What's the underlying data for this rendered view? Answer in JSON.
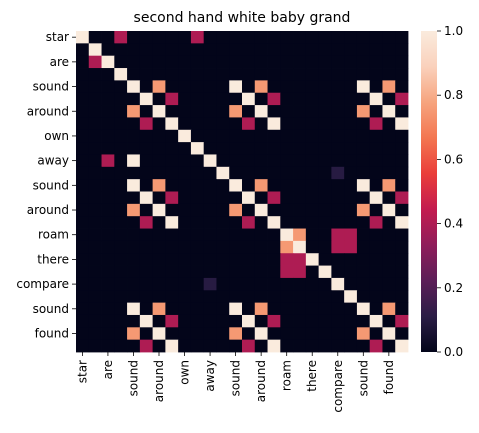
{
  "chart_data": {
    "type": "heatmap",
    "title": "second hand white baby grand",
    "xlabel": "",
    "ylabel": "",
    "row_labels": [
      "star",
      "",
      "are",
      "",
      "sound",
      "",
      "around",
      "",
      "own",
      "",
      "away",
      "",
      "sound",
      "",
      "around",
      "",
      "roam",
      "",
      "there",
      "",
      "compare",
      "",
      "sound",
      "",
      "found",
      ""
    ],
    "col_labels": [
      "star",
      "",
      "are",
      "",
      "sound",
      "",
      "around",
      "",
      "own",
      "",
      "away",
      "",
      "sound",
      "",
      "around",
      "",
      "roam",
      "",
      "there",
      "",
      "compare",
      "",
      "sound",
      "",
      "found",
      ""
    ],
    "colorbar": {
      "range": [
        0.0,
        1.0
      ],
      "ticks": [
        "0.0",
        "0.2",
        "0.4",
        "0.6",
        "0.8",
        "1.0"
      ]
    },
    "colormap": [
      "#03051a",
      "#2b1d46",
      "#5c1e58",
      "#8f1d5a",
      "#c31b4f",
      "#ea3e3a",
      "#f37651",
      "#f6a47e",
      "#fad1bc",
      "#faebdd"
    ],
    "values": [
      [
        1,
        0,
        0,
        0,
        0,
        0,
        0,
        0,
        0,
        0,
        0,
        0,
        0,
        0,
        0,
        0,
        0,
        0,
        0,
        0,
        0,
        0,
        0,
        0,
        0,
        0
      ],
      [
        0,
        1,
        0,
        0,
        0,
        0,
        0,
        0,
        0,
        0,
        0,
        0,
        0,
        0,
        0,
        0,
        0,
        0,
        0,
        0,
        0,
        0,
        0,
        0,
        0,
        0
      ],
      [
        0,
        0,
        1,
        0,
        0,
        0,
        0,
        0,
        0,
        0,
        0,
        0,
        0,
        0,
        0,
        0,
        0,
        0,
        0,
        0,
        0,
        0,
        0,
        0,
        0,
        0
      ],
      [
        0,
        0,
        0,
        1,
        0,
        0,
        0,
        0,
        0,
        0,
        0,
        0,
        0,
        0,
        0,
        0,
        0,
        0,
        0,
        0,
        0,
        0,
        0,
        0,
        0,
        0
      ],
      [
        0,
        0,
        0,
        0,
        1,
        0,
        0,
        0,
        0,
        0,
        0,
        0,
        0,
        0,
        0,
        0,
        0,
        0,
        0,
        0,
        0,
        0,
        0,
        0,
        0,
        0
      ],
      [
        0,
        0,
        0,
        0,
        0,
        1,
        0,
        0,
        0,
        0,
        0,
        0,
        0,
        0,
        0,
        0,
        0,
        0,
        0,
        0,
        0,
        0,
        0,
        0,
        0,
        0
      ],
      [
        0,
        0,
        0,
        0,
        0,
        0,
        1,
        0,
        0,
        0,
        0,
        0,
        0,
        0,
        0,
        0,
        0,
        0,
        0,
        0,
        0,
        0,
        0,
        0,
        0,
        0
      ],
      [
        0,
        0,
        0,
        0,
        0,
        0,
        0,
        1,
        0,
        0,
        0,
        0,
        0,
        0,
        0,
        0,
        0,
        0,
        0,
        0,
        0,
        0,
        0,
        0,
        0,
        0
      ],
      [
        0,
        0,
        0,
        0,
        0,
        0,
        0,
        0,
        1,
        0,
        0,
        0,
        0,
        0,
        0,
        0,
        0,
        0,
        0,
        0,
        0,
        0,
        0,
        0,
        0,
        0
      ],
      [
        0,
        0,
        0,
        0,
        0,
        0,
        0,
        0,
        0,
        1,
        0,
        0,
        0,
        0,
        0,
        0,
        0,
        0,
        0,
        0,
        0,
        0,
        0,
        0,
        0,
        0
      ],
      [
        0,
        0,
        0,
        0,
        0,
        0,
        0,
        0,
        0,
        0,
        1,
        0,
        0,
        0,
        0,
        0,
        0,
        0,
        0,
        0,
        0,
        0,
        0,
        0,
        0,
        0
      ],
      [
        0,
        0,
        0,
        0,
        0,
        0,
        0,
        0,
        0,
        0,
        0,
        1,
        0,
        0,
        0,
        0,
        0,
        0,
        0,
        0,
        0,
        0,
        0,
        0,
        0,
        0
      ],
      [
        0,
        0,
        0,
        0,
        0,
        0,
        0,
        0,
        0,
        0,
        0,
        0,
        1,
        0,
        0,
        0,
        0,
        0,
        0,
        0,
        0,
        0,
        0,
        0,
        0,
        0
      ],
      [
        0,
        0,
        0,
        0,
        0,
        0,
        0,
        0,
        0,
        0,
        0,
        0,
        0,
        1,
        0,
        0,
        0,
        0,
        0,
        0,
        0,
        0,
        0,
        0,
        0,
        0
      ],
      [
        0,
        0,
        0,
        0,
        0,
        0,
        0,
        0,
        0,
        0,
        0,
        0,
        0,
        0,
        1,
        0,
        0,
        0,
        0,
        0,
        0,
        0,
        0,
        0,
        0,
        0
      ],
      [
        0,
        0,
        0,
        0,
        0,
        0,
        0,
        0,
        0,
        0,
        0,
        0,
        0,
        0,
        0,
        1,
        0,
        0,
        0,
        0,
        0,
        0,
        0,
        0,
        0,
        0
      ],
      [
        0,
        0,
        0,
        0,
        0,
        0,
        0,
        0,
        0,
        0,
        0,
        0,
        0,
        0,
        0,
        0,
        1,
        0,
        0,
        0,
        0,
        0,
        0,
        0,
        0,
        0
      ],
      [
        0,
        0,
        0,
        0,
        0,
        0,
        0,
        0,
        0,
        0,
        0,
        0,
        0,
        0,
        0,
        0,
        0,
        1,
        0,
        0,
        0,
        0,
        0,
        0,
        0,
        0
      ],
      [
        0,
        0,
        0,
        0,
        0,
        0,
        0,
        0,
        0,
        0,
        0,
        0,
        0,
        0,
        0,
        0,
        0,
        0,
        1,
        0,
        0,
        0,
        0,
        0,
        0,
        0
      ],
      [
        0,
        0,
        0,
        0,
        0,
        0,
        0,
        0,
        0,
        0,
        0,
        0,
        0,
        0,
        0,
        0,
        0,
        0,
        0,
        1,
        0,
        0,
        0,
        0,
        0,
        0
      ],
      [
        0,
        0,
        0,
        0,
        0,
        0,
        0,
        0,
        0,
        0,
        0,
        0,
        0,
        0,
        0,
        0,
        0,
        0,
        0,
        0,
        1,
        0,
        0,
        0,
        0,
        0
      ],
      [
        0,
        0,
        0,
        0,
        0,
        0,
        0,
        0,
        0,
        0,
        0,
        0,
        0,
        0,
        0,
        0,
        0,
        0,
        0,
        0,
        0,
        1,
        0,
        0,
        0,
        0
      ],
      [
        0,
        0,
        0,
        0,
        0,
        0,
        0,
        0,
        0,
        0,
        0,
        0,
        0,
        0,
        0,
        0,
        0,
        0,
        0,
        0,
        0,
        0,
        1,
        0,
        0,
        0
      ],
      [
        0,
        0,
        0,
        0,
        0,
        0,
        0,
        0,
        0,
        0,
        0,
        0,
        0,
        0,
        0,
        0,
        0,
        0,
        0,
        0,
        0,
        0,
        0,
        1,
        0,
        0
      ],
      [
        0,
        0,
        0,
        0,
        0,
        0,
        0,
        0,
        0,
        0,
        0,
        0,
        0,
        0,
        0,
        0,
        0,
        0,
        0,
        0,
        0,
        0,
        0,
        0,
        1,
        0
      ],
      [
        0,
        0,
        0,
        0,
        0,
        0,
        0,
        0,
        0,
        0,
        0,
        0,
        0,
        0,
        0,
        0,
        0,
        0,
        0,
        0,
        0,
        0,
        0,
        0,
        0,
        1
      ]
    ],
    "overrides": [
      [
        0,
        3,
        0.4
      ],
      [
        0,
        9,
        0.4
      ],
      [
        1,
        3,
        0.0
      ],
      [
        2,
        1,
        0.4
      ],
      [
        3,
        0,
        0.0
      ],
      [
        2,
        10,
        0.0
      ],
      [
        4,
        6,
        0.75
      ],
      [
        5,
        7,
        0.4
      ],
      [
        6,
        4,
        0.75
      ],
      [
        6,
        6,
        1
      ],
      [
        7,
        5,
        0.4
      ],
      [
        6,
        7,
        0.0
      ],
      [
        4,
        12,
        1
      ],
      [
        4,
        14,
        0.75
      ],
      [
        5,
        13,
        1
      ],
      [
        5,
        15,
        0.4
      ],
      [
        6,
        12,
        0.75
      ],
      [
        6,
        14,
        1
      ],
      [
        7,
        13,
        0.4
      ],
      [
        7,
        15,
        1
      ],
      [
        4,
        22,
        1
      ],
      [
        4,
        24,
        0.75
      ],
      [
        5,
        23,
        1
      ],
      [
        5,
        25,
        0.4
      ],
      [
        6,
        22,
        0.75
      ],
      [
        6,
        24,
        1
      ],
      [
        7,
        23,
        0.4
      ],
      [
        7,
        25,
        1
      ],
      [
        12,
        4,
        1
      ],
      [
        12,
        6,
        0.75
      ],
      [
        13,
        5,
        1
      ],
      [
        13,
        7,
        0.4
      ],
      [
        14,
        4,
        0.75
      ],
      [
        14,
        6,
        1
      ],
      [
        15,
        5,
        0.4
      ],
      [
        15,
        7,
        1
      ],
      [
        12,
        14,
        0.75
      ],
      [
        13,
        15,
        0.4
      ],
      [
        14,
        12,
        0.75
      ],
      [
        15,
        13,
        0.4
      ],
      [
        12,
        22,
        1
      ],
      [
        12,
        24,
        0.75
      ],
      [
        13,
        23,
        1
      ],
      [
        13,
        25,
        0.4
      ],
      [
        14,
        22,
        0.75
      ],
      [
        14,
        24,
        1
      ],
      [
        15,
        23,
        0.4
      ],
      [
        15,
        25,
        1
      ],
      [
        22,
        4,
        1
      ],
      [
        22,
        6,
        0.75
      ],
      [
        23,
        5,
        1
      ],
      [
        23,
        7,
        0.4
      ],
      [
        24,
        4,
        0.75
      ],
      [
        24,
        6,
        1
      ],
      [
        25,
        5,
        0.4
      ],
      [
        25,
        7,
        1
      ],
      [
        22,
        12,
        1
      ],
      [
        22,
        14,
        0.75
      ],
      [
        23,
        13,
        1
      ],
      [
        23,
        15,
        0.4
      ],
      [
        24,
        12,
        0.75
      ],
      [
        24,
        14,
        1
      ],
      [
        25,
        13,
        0.4
      ],
      [
        25,
        15,
        1
      ],
      [
        22,
        24,
        0.75
      ],
      [
        23,
        25,
        0.4
      ],
      [
        24,
        22,
        0.75
      ],
      [
        25,
        23,
        0.4
      ],
      [
        10,
        2,
        0.4
      ],
      [
        10,
        4,
        1
      ],
      [
        9,
        10,
        0.0
      ],
      [
        11,
        20,
        0.1
      ],
      [
        20,
        10,
        0.1
      ],
      [
        16,
        17,
        0.75
      ],
      [
        17,
        16,
        0.75
      ],
      [
        16,
        18,
        0.0
      ],
      [
        18,
        16,
        0.0
      ],
      [
        16,
        20,
        0.4
      ],
      [
        16,
        21,
        0.4
      ],
      [
        17,
        20,
        0.4
      ],
      [
        17,
        21,
        0.4
      ],
      [
        18,
        16,
        0.4
      ],
      [
        18,
        17,
        0.4
      ],
      [
        19,
        16,
        0.4
      ],
      [
        19,
        17,
        0.4
      ]
    ]
  }
}
